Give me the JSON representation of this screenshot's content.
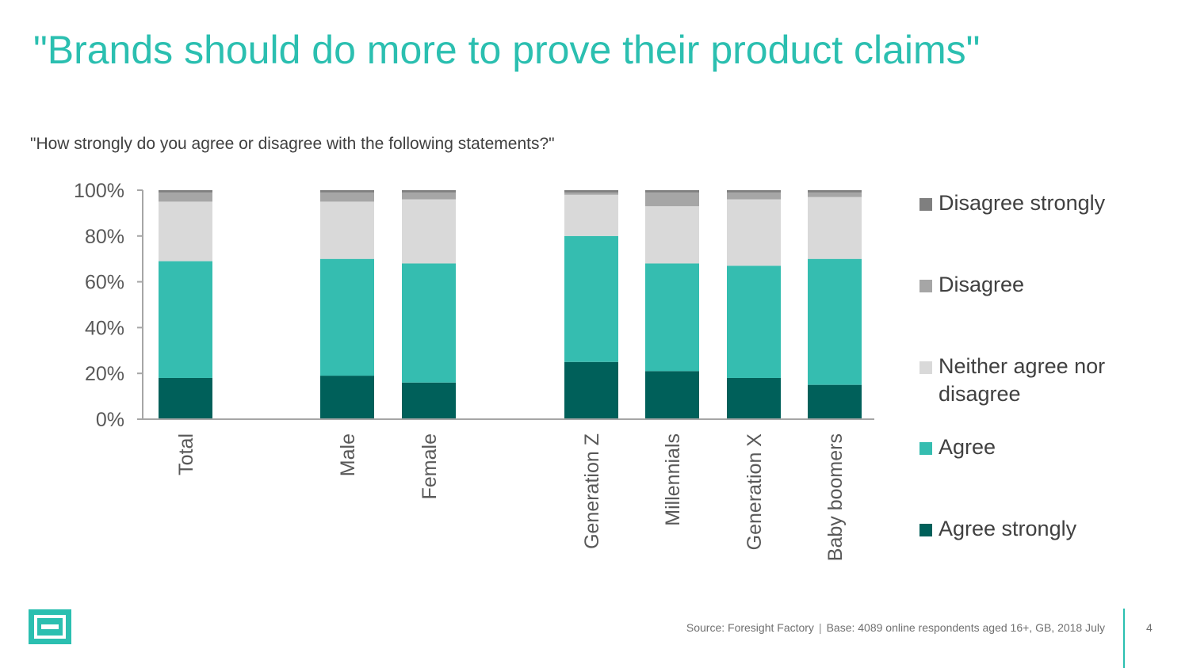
{
  "slide": {
    "title": "\"Brands should do more to prove their product claims\"",
    "subtitle": "\"How strongly do you agree or disagree with the following statements?\"",
    "footer": {
      "source": "Source: Foresight Factory",
      "base": "Base:  4089 online respondents aged 16+, GB, 2018 July"
    },
    "page_number": "4",
    "accent_color": "#2bbfb0"
  },
  "chart_data": {
    "type": "bar",
    "stacked": true,
    "categories": [
      "Total",
      "Male",
      "Female",
      "Generation Z",
      "Millennials",
      "Generation X",
      "Baby boomers"
    ],
    "category_groups": [
      [
        "Total"
      ],
      [
        "Male",
        "Female"
      ],
      [
        "Generation Z",
        "Millennials",
        "Generation X",
        "Baby boomers"
      ]
    ],
    "yticks": [
      "0%",
      "20%",
      "40%",
      "60%",
      "80%",
      "100%"
    ],
    "ylim": [
      0,
      100
    ],
    "legend_position": "right",
    "grid": false,
    "series": [
      {
        "name": "Agree strongly",
        "color": "#00605a",
        "values": [
          18,
          19,
          16,
          25,
          21,
          18,
          15
        ]
      },
      {
        "name": "Agree",
        "color": "#35bdb0",
        "values": [
          51,
          51,
          52,
          55,
          47,
          49,
          55
        ]
      },
      {
        "name": "Neither agree nor disagree",
        "color": "#d9d9d9",
        "values": [
          26,
          25,
          28,
          18,
          25,
          29,
          27
        ]
      },
      {
        "name": "Disagree",
        "color": "#a6a6a6",
        "values": [
          4,
          4,
          3,
          1,
          6,
          3,
          2
        ]
      },
      {
        "name": "Disagree strongly",
        "color": "#7f7f7f",
        "values": [
          1,
          1,
          1,
          1,
          1,
          1,
          1
        ]
      }
    ]
  }
}
